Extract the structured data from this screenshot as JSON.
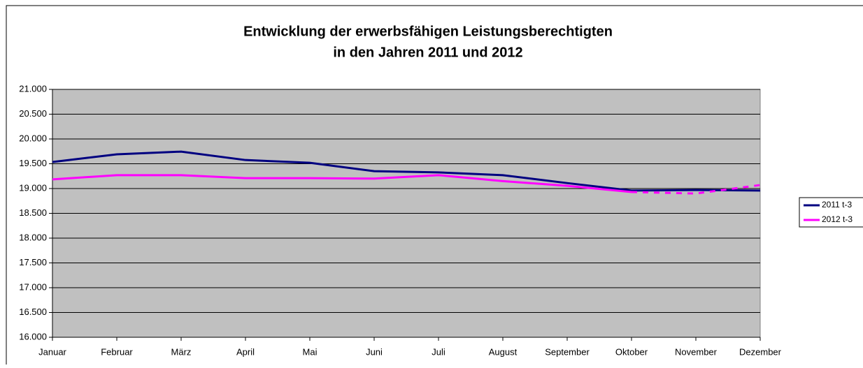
{
  "chart_data": {
    "type": "line",
    "title": "Entwicklung der erwerbsfähigen Leistungsberechtigten",
    "subtitle": "in den Jahren 2011 und 2012",
    "categories": [
      "Januar",
      "Februar",
      "März",
      "April",
      "Mai",
      "Juni",
      "Juli",
      "August",
      "September",
      "Oktober",
      "November",
      "Dezember"
    ],
    "series": [
      {
        "name": "2011 t-3",
        "color": "#000080",
        "values": [
          19535,
          19690,
          19745,
          19575,
          19520,
          19350,
          19325,
          19270,
          19110,
          18960,
          18970,
          18960
        ]
      },
      {
        "name": "2012 t-3",
        "color": "#ff00ff",
        "values": [
          19185,
          19270,
          19270,
          19210,
          19210,
          19200,
          19270,
          19150,
          19055,
          18930,
          18900,
          19070
        ],
        "dashed_from_index": 9
      }
    ],
    "ylim": [
      16000,
      21000
    ],
    "yticks": [
      {
        "value": 16000,
        "label": "16.000"
      },
      {
        "value": 16500,
        "label": "16.500"
      },
      {
        "value": 17000,
        "label": "17.000"
      },
      {
        "value": 17500,
        "label": "17.500"
      },
      {
        "value": 18000,
        "label": "18.000"
      },
      {
        "value": 18500,
        "label": "18.500"
      },
      {
        "value": 19000,
        "label": "19.000"
      },
      {
        "value": 19500,
        "label": "19.500"
      },
      {
        "value": 20000,
        "label": "20.000"
      },
      {
        "value": 20500,
        "label": "20.500"
      },
      {
        "value": 21000,
        "label": "21.000"
      }
    ],
    "grid": true,
    "plot_background": "#c0c0c0",
    "legend": "right"
  }
}
